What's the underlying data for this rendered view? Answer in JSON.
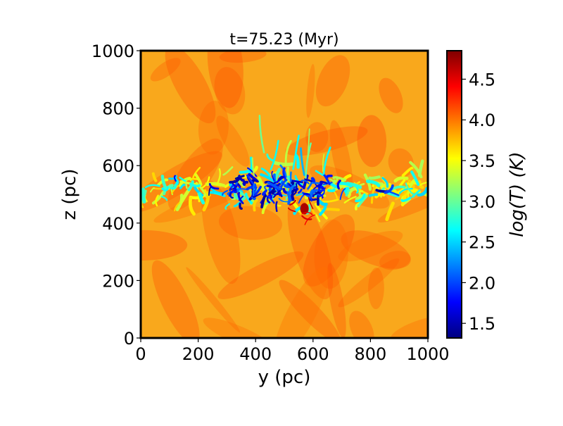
{
  "chart_data": {
    "type": "heatmap",
    "title": "t=75.23 (Myr)",
    "xlabel": "y (pc)",
    "ylabel": "z (pc)",
    "xlim": [
      0,
      1000
    ],
    "ylim": [
      0,
      1000
    ],
    "x_ticks": [
      0,
      200,
      400,
      600,
      800,
      1000
    ],
    "y_ticks": [
      0,
      200,
      400,
      600,
      800,
      1000
    ],
    "colorbar": {
      "label": "log(T) (K)",
      "range": [
        1.32,
        4.85
      ],
      "ticks": [
        1.5,
        2.0,
        2.5,
        3.0,
        3.5,
        4.0,
        4.5
      ],
      "tick_labels": [
        "1.5",
        "2.0",
        "2.5",
        "3.0",
        "3.5",
        "4.0",
        "4.5"
      ],
      "colormap": "jet"
    },
    "field": {
      "background_logT": 4.05,
      "cold_layer": {
        "z_range": [
          360,
          680
        ],
        "min_logT": 1.4,
        "core_y_range": [
          300,
          650
        ],
        "hot_spot": {
          "y": 570,
          "z": 450,
          "logT": 4.7
        }
      }
    },
    "colors": {
      "background": "#f9a81c",
      "frame": "#000000"
    }
  }
}
